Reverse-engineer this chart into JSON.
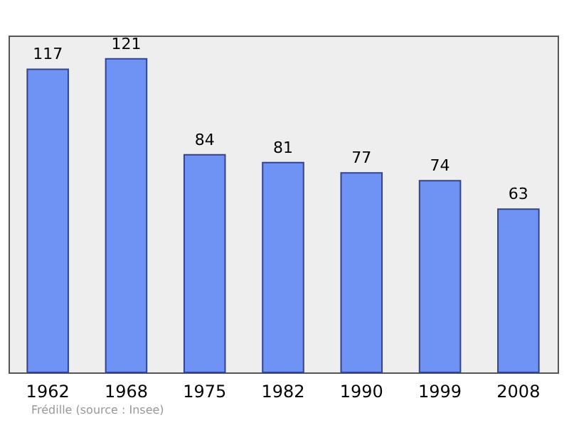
{
  "chart_data": {
    "type": "bar",
    "categories": [
      "1962",
      "1968",
      "1975",
      "1982",
      "1990",
      "1999",
      "2008"
    ],
    "values": [
      117,
      121,
      84,
      81,
      77,
      74,
      63
    ],
    "color": "#6f93f5",
    "data_labels": true,
    "annotations": [
      "Frédille",
      "(source : Insee)"
    ]
  }
}
